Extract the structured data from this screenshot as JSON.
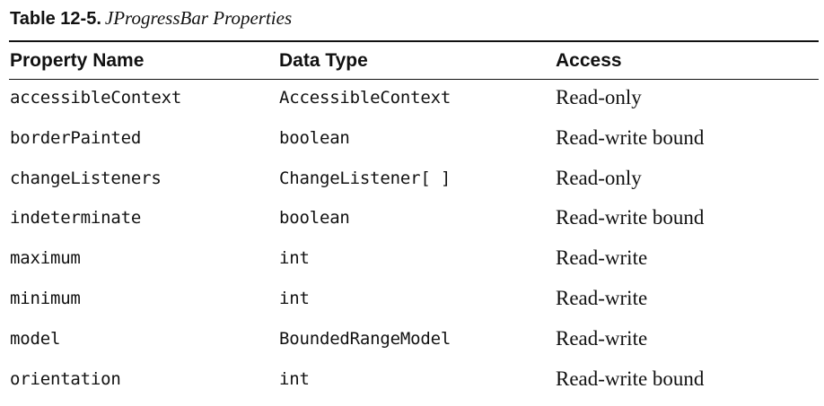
{
  "caption": {
    "label": "Table 12-5.",
    "title": "JProgressBar Properties"
  },
  "headers": [
    "Property Name",
    "Data Type",
    "Access"
  ],
  "rows": [
    {
      "name": "accessibleContext",
      "type": "AccessibleContext",
      "access": "Read-only"
    },
    {
      "name": "borderPainted",
      "type": "boolean",
      "access": "Read-write bound"
    },
    {
      "name": "changeListeners",
      "type": "ChangeListener[ ]",
      "access": "Read-only"
    },
    {
      "name": "indeterminate",
      "type": "boolean",
      "access": "Read-write bound"
    },
    {
      "name": "maximum",
      "type": "int",
      "access": "Read-write"
    },
    {
      "name": "minimum",
      "type": "int",
      "access": "Read-write"
    },
    {
      "name": "model",
      "type": "BoundedRangeModel",
      "access": "Read-write"
    },
    {
      "name": "orientation",
      "type": "int",
      "access": "Read-write bound"
    }
  ]
}
